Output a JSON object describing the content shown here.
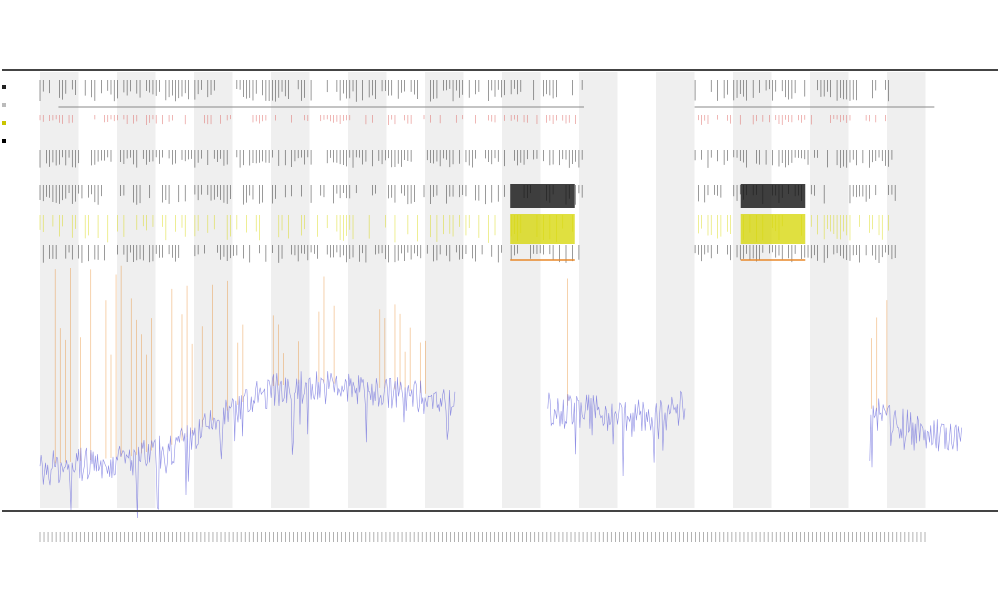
{
  "header": {
    "title": "",
    "subtitle_1": "",
    "subtitle_2": ""
  },
  "legend": [
    {
      "label": "",
      "color": "#222222"
    },
    {
      "label": "",
      "color": "#bbbbbb"
    },
    {
      "label": "",
      "color": "#c9c400"
    },
    {
      "label": "",
      "color": "#000000"
    }
  ],
  "colors": {
    "band": "#efefef",
    "trace": "#6b6bdc",
    "spike": "#e8892a",
    "highlight": "#d6d600",
    "track_dark": "#111111",
    "track_red": "#d9534f"
  },
  "chart_data": {
    "type": "line",
    "title": "",
    "xlabel": "",
    "ylabel": "",
    "grid": false,
    "legend_position": "top-left",
    "x": [
      0,
      5,
      10,
      15,
      20,
      25,
      30,
      35,
      40,
      45,
      50,
      55,
      60,
      65,
      70,
      75,
      80,
      85,
      90,
      95,
      100
    ],
    "ylim": [
      0,
      100
    ],
    "series": [
      {
        "name": "",
        "values": [
          9,
          10,
          11,
          14,
          21,
          27,
          28,
          27,
          26,
          24,
          null,
          23,
          22,
          21,
          23,
          null,
          null,
          null,
          22,
          18,
          15
        ]
      }
    ],
    "active_segments": [
      [
        0,
        59
      ],
      [
        71,
        93
      ]
    ],
    "constant_bar_segments": [
      [
        51,
        58
      ],
      [
        76,
        83
      ]
    ]
  },
  "footer": {
    "x_tick_text": "",
    "note": ""
  }
}
